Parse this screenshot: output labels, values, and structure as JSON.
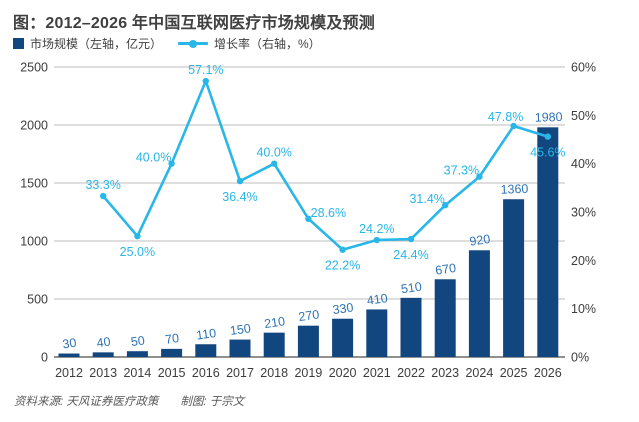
{
  "header": {
    "title": "图：2012–2026 年中国互联网医疗市场规模及预测"
  },
  "legend": {
    "bar_label": "市场规模（左轴，亿元）",
    "line_label": "增长率（右轴，%）"
  },
  "footer": {
    "source": "资料来源: 天风证券医疗政策",
    "credit": "制图: 于宗文"
  },
  "colors": {
    "bar": "#11467e",
    "line": "#29b6e8",
    "bar_value_label": "#2e74b5",
    "pct_label": "#29b6e8",
    "axis_text": "#3d3d3d",
    "gridline": "#bdbdbd",
    "baseline": "#4d4d4d"
  },
  "chart_data": {
    "type": "bar+line combo",
    "title": "图：2012–2026 年中国互联网医疗市场规模及预测",
    "categories": [
      "2012",
      "2013",
      "2014",
      "2015",
      "2016",
      "2017",
      "2018",
      "2019",
      "2020",
      "2021",
      "2022",
      "2023",
      "2024",
      "2025",
      "2026"
    ],
    "series": [
      {
        "name": "市场规模（左轴，亿元）",
        "type": "bar",
        "axis": "left",
        "values": [
          30,
          40,
          50,
          70,
          110,
          150,
          210,
          270,
          330,
          410,
          510,
          670,
          920,
          1360,
          1980
        ]
      },
      {
        "name": "增长率（右轴，%）",
        "type": "line",
        "axis": "right",
        "values": [
          null,
          33.3,
          25.0,
          40.0,
          57.1,
          36.4,
          40.0,
          28.6,
          22.2,
          24.2,
          24.4,
          31.4,
          37.3,
          47.8,
          45.6
        ],
        "labels": [
          null,
          "33.3%",
          "25.0%",
          "40.0%",
          "57.1%",
          "36.4%",
          "40.0%",
          "28.6%",
          "22.2%",
          "24.2%",
          "24.4%",
          "31.4%",
          "37.3%",
          "47.8%",
          "45.6%"
        ],
        "label_positions": [
          null,
          "above",
          "below",
          "above-left",
          "above",
          "below",
          "above",
          "above-right",
          "below",
          "above",
          "below",
          "above-left",
          "above-left",
          "above-left-sm",
          "below"
        ]
      }
    ],
    "left_axis": {
      "label": "亿元",
      "min": 0,
      "max": 2500,
      "step": 500,
      "ticks": [
        "2500",
        "2000",
        "1500",
        "1000",
        "500",
        "0"
      ]
    },
    "right_axis": {
      "label": "%",
      "min": 0,
      "max": 60,
      "step": 10,
      "ticks": [
        "60%",
        "50%",
        "40%",
        "30%",
        "20%",
        "10%",
        "0%"
      ]
    },
    "grid": "horizontal, at left-axis ticks",
    "legend_position": "top-left"
  }
}
